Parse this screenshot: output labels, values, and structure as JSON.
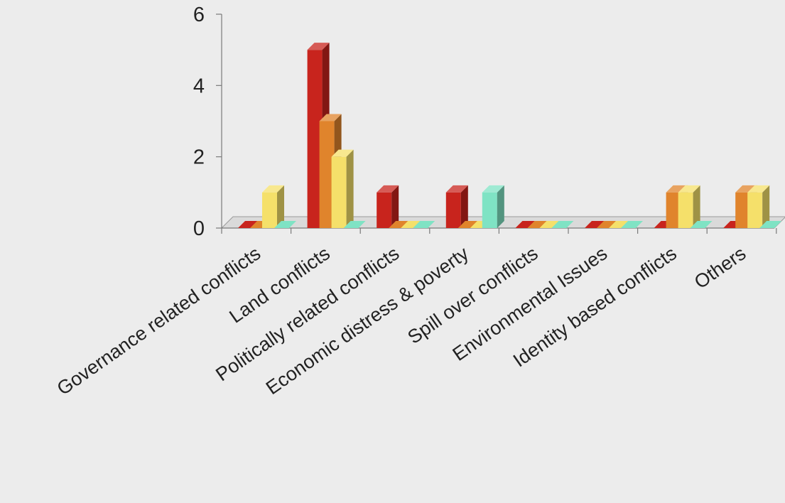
{
  "chart_data": {
    "type": "bar",
    "title": "",
    "xlabel": "",
    "ylabel": "",
    "ylim": [
      0,
      6
    ],
    "yticks": [
      0,
      2,
      4,
      6
    ],
    "grid": false,
    "legend": "none",
    "categories": [
      "Governance related conflicts",
      "Land conflicts",
      "Politically related conflicts",
      "Economic distress & poverty",
      "Spill over conflicts",
      "Environmental Issues",
      "Identity based conflicts",
      "Others"
    ],
    "series": [
      {
        "color": "#c8241d",
        "values": [
          0,
          5,
          1,
          1,
          0,
          0,
          0,
          0
        ]
      },
      {
        "color": "#e0842c",
        "values": [
          0,
          3,
          0,
          0,
          0,
          0,
          1,
          1
        ]
      },
      {
        "color": "#f5e06a",
        "values": [
          1,
          2,
          0,
          0,
          0,
          0,
          1,
          1
        ]
      },
      {
        "color": "#7fe3c4",
        "values": [
          0,
          0,
          0,
          1,
          0,
          0,
          0,
          0
        ]
      }
    ]
  }
}
